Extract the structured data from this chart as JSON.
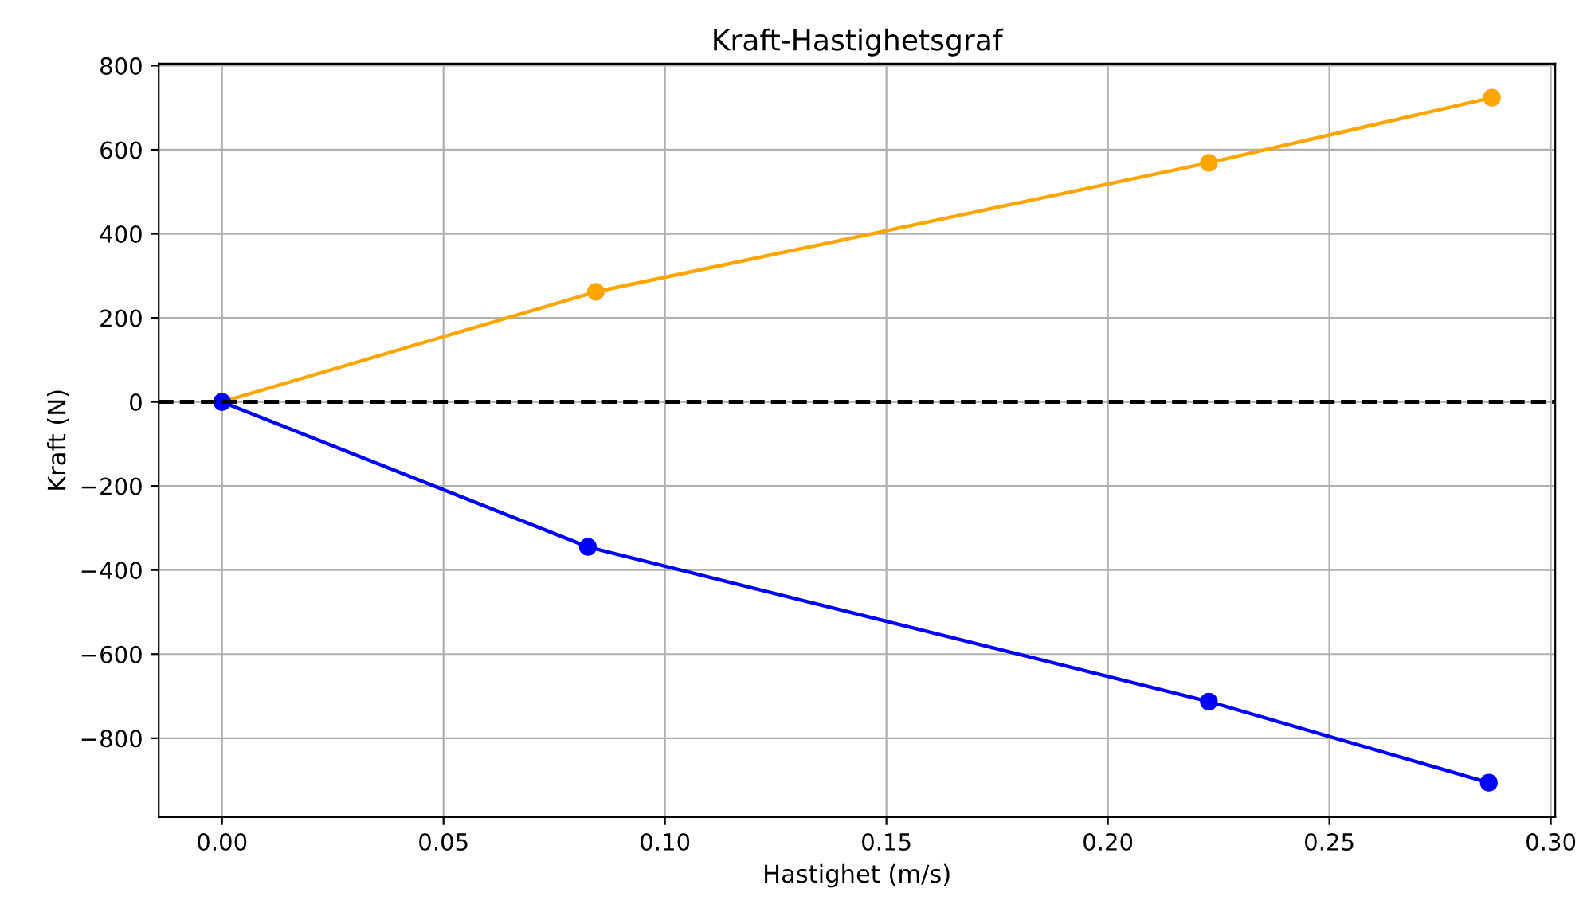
{
  "chart_data": {
    "type": "line",
    "title": "Kraft-Hastighetsgraf",
    "xlabel": "Hastighet (m/s)",
    "ylabel": "Kraft (N)",
    "series": [
      {
        "color": "#ffa500",
        "x": [
          0,
          0.0844,
          0.2228,
          0.2867
        ],
        "values": [
          0,
          262,
          569,
          724
        ]
      },
      {
        "color": "#0000ff",
        "x": [
          0,
          0.0826,
          0.2228,
          0.286
        ],
        "values": [
          0,
          -345,
          -713,
          -906
        ]
      }
    ],
    "xlim": [
      -0.0143,
      0.301
    ],
    "ylim": [
      -988,
      805
    ],
    "xticks": [
      {
        "value": 0,
        "label": "0.00"
      },
      {
        "value": 0.05,
        "label": "0.05"
      },
      {
        "value": 0.1,
        "label": "0.10"
      },
      {
        "value": 0.15,
        "label": "0.15"
      },
      {
        "value": 0.2,
        "label": "0.20"
      },
      {
        "value": 0.25,
        "label": "0.25"
      },
      {
        "value": 0.3,
        "label": "0.30"
      }
    ],
    "yticks": [
      {
        "value": -800,
        "label": "−800"
      },
      {
        "value": -600,
        "label": "−600"
      },
      {
        "value": -400,
        "label": "−400"
      },
      {
        "value": -200,
        "label": "−200"
      },
      0,
      200,
      400,
      600,
      800
    ],
    "ref_lines": [
      {
        "axis": "y",
        "value": 0,
        "color": "#000000",
        "line_style": "dashed"
      }
    ],
    "grid": true,
    "marker": "circle",
    "line_style": "solid"
  }
}
